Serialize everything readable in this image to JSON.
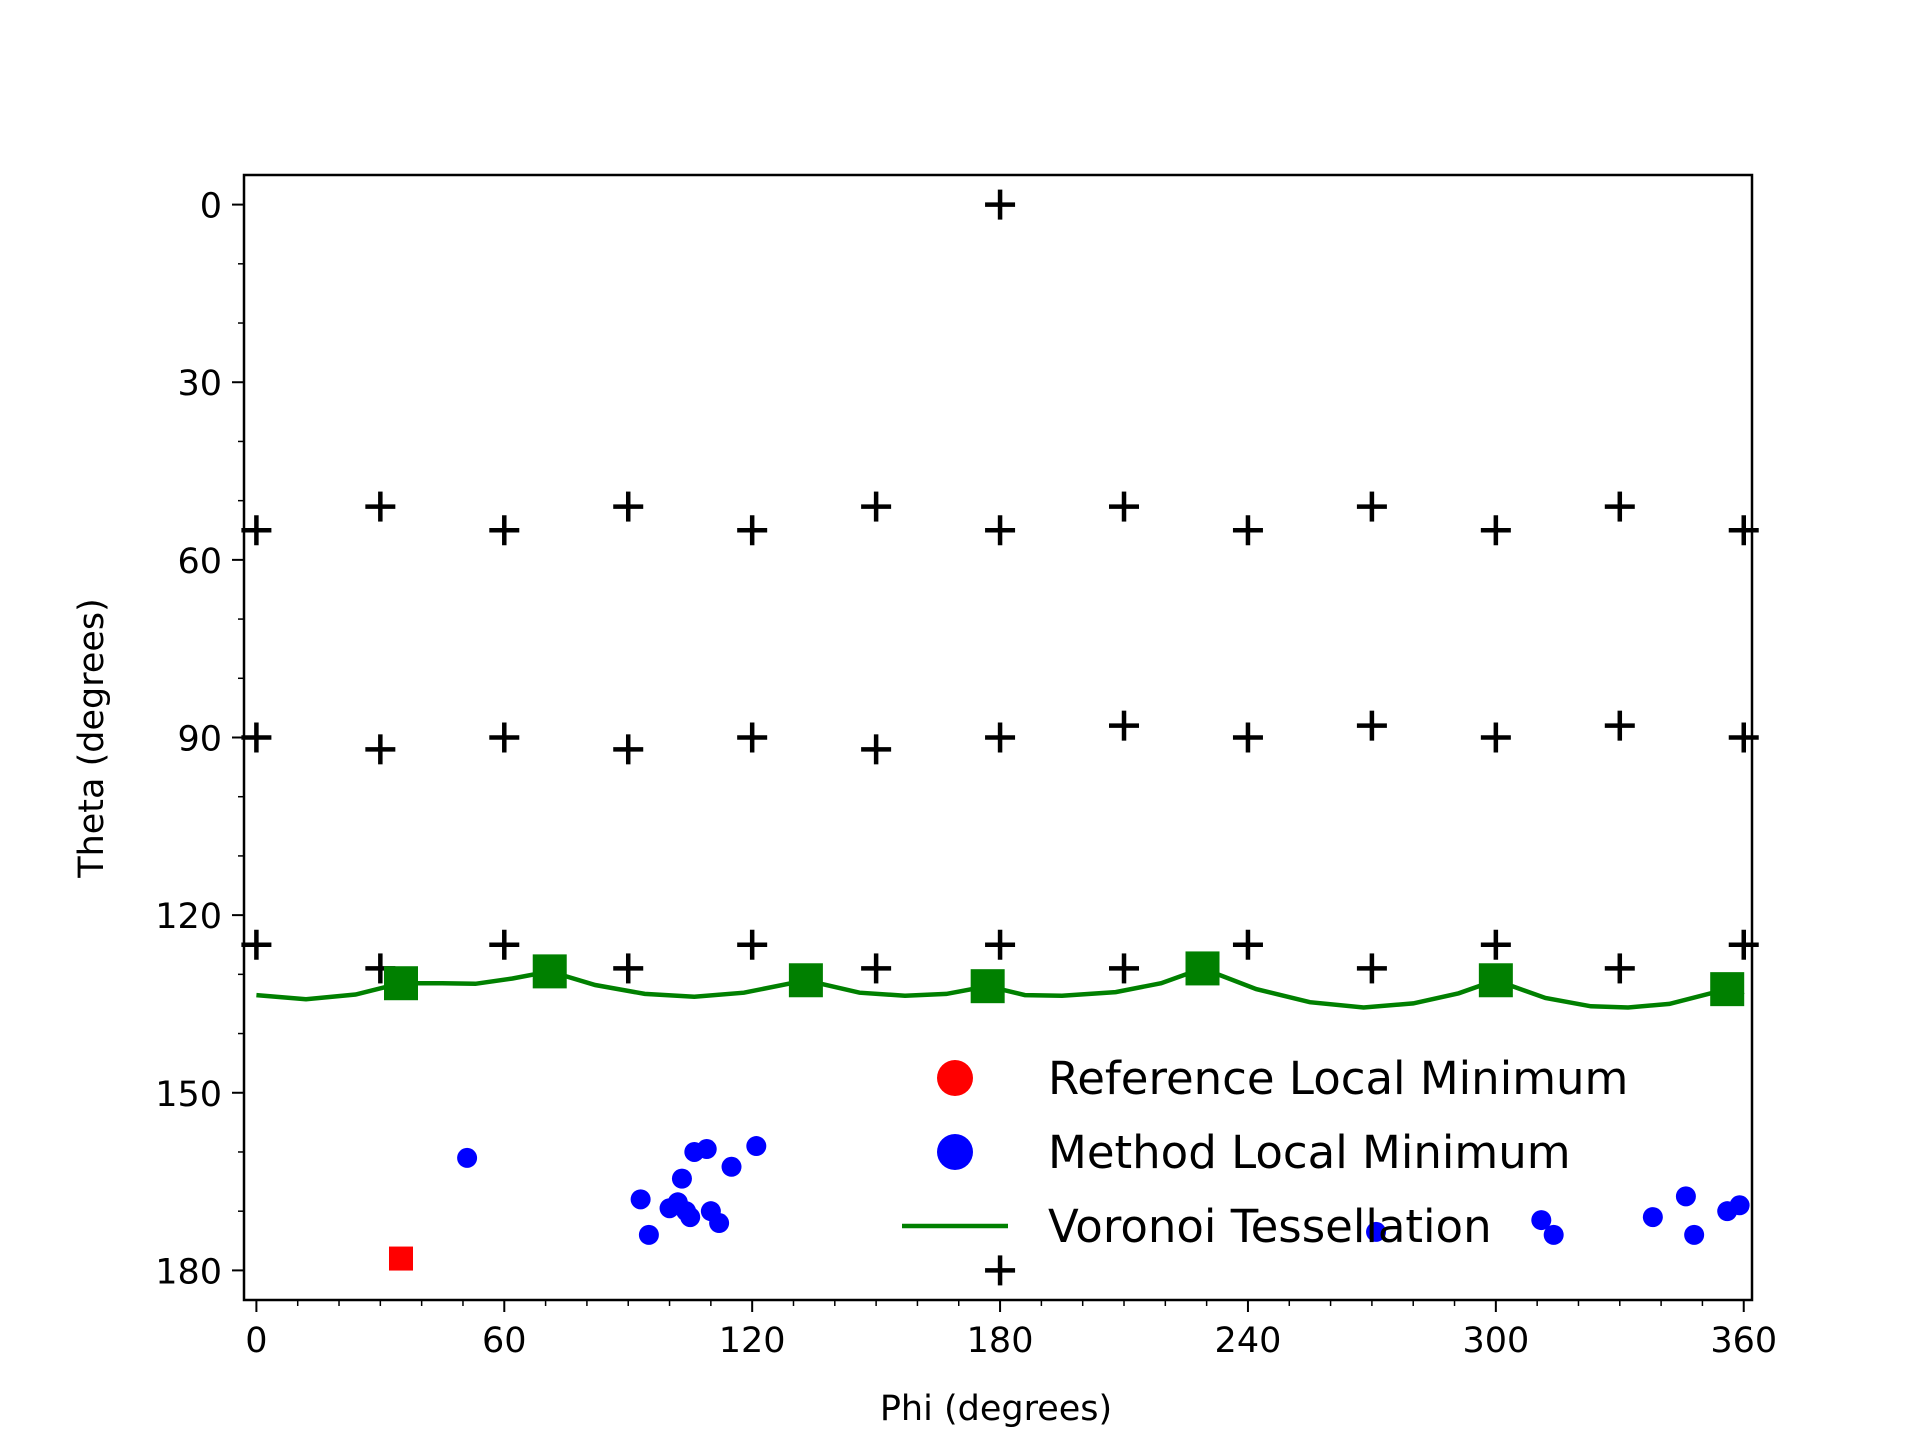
{
  "chart_data": {
    "type": "scatter",
    "title": "",
    "xlabel": "Phi (degrees)",
    "ylabel": "Theta (degrees)",
    "xlim": [
      -3,
      362
    ],
    "ylim": [
      185,
      -5
    ],
    "y_inverted": true,
    "xticks": [
      0,
      60,
      120,
      180,
      240,
      300,
      360
    ],
    "yticks": [
      0,
      30,
      60,
      90,
      120,
      150,
      180
    ],
    "xminor_step": 10,
    "yminor_step": 10,
    "grid": false,
    "legend_position": "lower-right",
    "colors": {
      "grid_points": "#000000",
      "voronoi": "#008000",
      "method_minimum": "#0000ff",
      "reference_minimum": "#ff0000"
    },
    "legend": [
      {
        "label": "Reference Local Minimum",
        "marker": "circle",
        "color": "#ff0000"
      },
      {
        "label": "Method Local Minimum",
        "marker": "circle",
        "color": "#0000ff"
      },
      {
        "label": "Voronoi Tessellation",
        "marker": "line",
        "color": "#008000"
      }
    ],
    "grid_points": [
      [
        180,
        0
      ],
      [
        0,
        55
      ],
      [
        30,
        51
      ],
      [
        60,
        55
      ],
      [
        90,
        51
      ],
      [
        120,
        55
      ],
      [
        150,
        51
      ],
      [
        180,
        55
      ],
      [
        210,
        51
      ],
      [
        240,
        55
      ],
      [
        270,
        51
      ],
      [
        300,
        55
      ],
      [
        330,
        51
      ],
      [
        360,
        55
      ],
      [
        0,
        90
      ],
      [
        30,
        92
      ],
      [
        60,
        90
      ],
      [
        90,
        92
      ],
      [
        120,
        90
      ],
      [
        150,
        92
      ],
      [
        180,
        90
      ],
      [
        210,
        88
      ],
      [
        240,
        90
      ],
      [
        270,
        88
      ],
      [
        300,
        90
      ],
      [
        330,
        88
      ],
      [
        360,
        90
      ],
      [
        0,
        125
      ],
      [
        30,
        129
      ],
      [
        60,
        125
      ],
      [
        90,
        129
      ],
      [
        120,
        125
      ],
      [
        150,
        129
      ],
      [
        180,
        125
      ],
      [
        210,
        129
      ],
      [
        240,
        125
      ],
      [
        270,
        129
      ],
      [
        300,
        125
      ],
      [
        330,
        129
      ],
      [
        360,
        125
      ],
      [
        180,
        180
      ]
    ],
    "voronoi_nodes": [
      [
        35,
        131.5
      ],
      [
        71,
        129.5
      ],
      [
        133,
        131
      ],
      [
        177,
        132
      ],
      [
        229,
        129
      ],
      [
        300,
        131
      ],
      [
        356,
        132.5
      ]
    ],
    "voronoi_curve": [
      [
        0,
        133.5
      ],
      [
        12,
        134.2
      ],
      [
        24,
        133.4
      ],
      [
        35,
        131.5
      ],
      [
        45,
        131.5
      ],
      [
        53,
        131.6
      ],
      [
        62,
        130.7
      ],
      [
        71,
        129.5
      ],
      [
        82,
        131.8
      ],
      [
        94,
        133.3
      ],
      [
        106,
        133.8
      ],
      [
        118,
        133.1
      ],
      [
        133,
        131
      ],
      [
        146,
        133.1
      ],
      [
        157,
        133.6
      ],
      [
        167,
        133.3
      ],
      [
        177,
        132
      ],
      [
        186,
        133.5
      ],
      [
        195,
        133.6
      ],
      [
        208,
        133
      ],
      [
        219,
        131.5
      ],
      [
        229,
        129
      ],
      [
        242,
        132.5
      ],
      [
        255,
        134.7
      ],
      [
        268,
        135.6
      ],
      [
        280,
        134.9
      ],
      [
        291,
        133.2
      ],
      [
        300,
        131
      ],
      [
        312,
        134
      ],
      [
        323,
        135.4
      ],
      [
        332,
        135.6
      ],
      [
        342,
        135
      ],
      [
        356,
        132.5
      ],
      [
        360,
        133.5
      ]
    ],
    "method_minima": [
      [
        51,
        161
      ],
      [
        93,
        168
      ],
      [
        95,
        174
      ],
      [
        100,
        169.5
      ],
      [
        102,
        168.5
      ],
      [
        104,
        170
      ],
      [
        105,
        171
      ],
      [
        103,
        164.5
      ],
      [
        106,
        160
      ],
      [
        109,
        159.5
      ],
      [
        110,
        170
      ],
      [
        112,
        172
      ],
      [
        115,
        162.5
      ],
      [
        121,
        159
      ],
      [
        271,
        173.5
      ],
      [
        311,
        171.5
      ],
      [
        314,
        174
      ],
      [
        338,
        171
      ],
      [
        346,
        167.5
      ],
      [
        348,
        174
      ],
      [
        356,
        170
      ],
      [
        359,
        169
      ]
    ],
    "reference_minima": [
      [
        35,
        178
      ]
    ]
  }
}
